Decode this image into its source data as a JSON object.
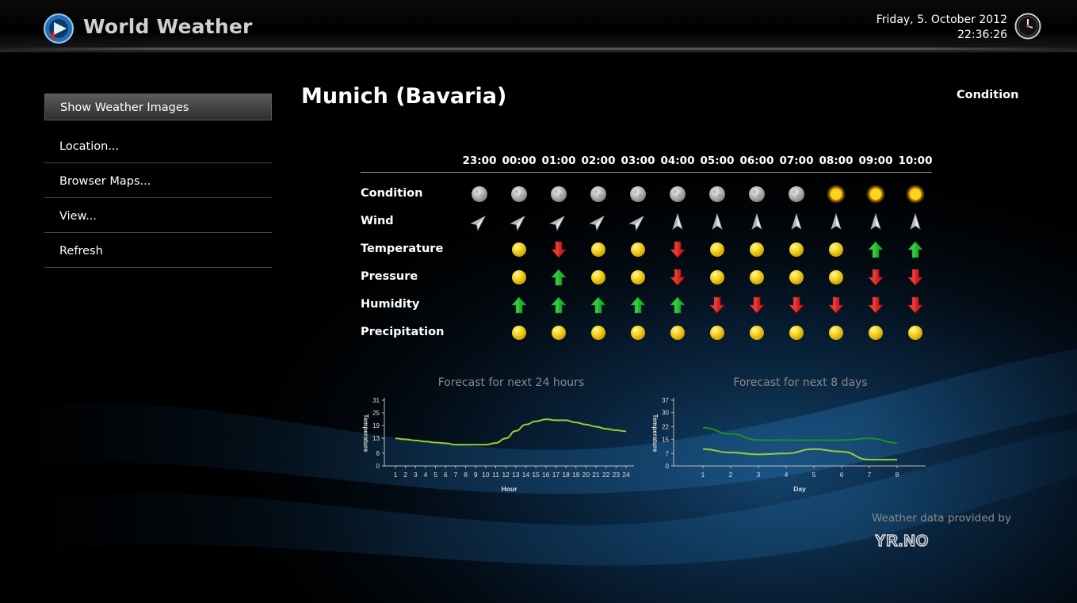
{
  "app": {
    "title": "World Weather"
  },
  "clock": {
    "date": "Friday, 5. October 2012",
    "time": "22:36:26"
  },
  "menu": [
    {
      "label": "Show Weather Images",
      "active": true
    },
    {
      "label": "Location...",
      "active": false
    },
    {
      "label": "Browser Maps...",
      "active": false
    },
    {
      "label": "View...",
      "active": false
    },
    {
      "label": "Refresh",
      "active": false
    }
  ],
  "location": {
    "city": "Munich (Bavaria)"
  },
  "condition_header": "Condition",
  "forecast_table": {
    "hours": [
      "23:00",
      "00:00",
      "01:00",
      "02:00",
      "03:00",
      "04:00",
      "05:00",
      "06:00",
      "07:00",
      "08:00",
      "09:00",
      "10:00"
    ],
    "rows": [
      {
        "label": "Condition",
        "cells": [
          "moon",
          "moon",
          "moon",
          "moon",
          "moon",
          "moon",
          "moon",
          "moon",
          "moon",
          "sun",
          "sun",
          "sun"
        ]
      },
      {
        "label": "Wind",
        "cells": [
          "ne",
          "ne",
          "ne",
          "ne",
          "ne",
          "n",
          "n",
          "n",
          "n",
          "n",
          "n",
          "n"
        ]
      },
      {
        "label": "Temperature",
        "cells": [
          "",
          "steady",
          "down",
          "steady",
          "steady",
          "down",
          "steady",
          "steady",
          "steady",
          "steady",
          "up",
          "up"
        ]
      },
      {
        "label": "Pressure",
        "cells": [
          "",
          "steady",
          "up",
          "steady",
          "steady",
          "down",
          "steady",
          "steady",
          "steady",
          "steady",
          "down",
          "down"
        ]
      },
      {
        "label": "Humidity",
        "cells": [
          "",
          "up",
          "up",
          "up",
          "up",
          "up",
          "down",
          "down",
          "down",
          "down",
          "down",
          "down"
        ]
      },
      {
        "label": "Precipitation",
        "cells": [
          "",
          "steady",
          "steady",
          "steady",
          "steady",
          "steady",
          "steady",
          "steady",
          "steady",
          "steady",
          "steady",
          "steady"
        ]
      }
    ]
  },
  "chart_data": [
    {
      "type": "line",
      "title": "Forecast for next 24 hours",
      "xlabel": "Hour",
      "ylabel": "Temperature",
      "x": [
        1,
        2,
        3,
        4,
        5,
        6,
        7,
        8,
        9,
        10,
        11,
        12,
        13,
        14,
        15,
        16,
        17,
        18,
        19,
        20,
        21,
        22,
        23,
        24
      ],
      "ylim": [
        0,
        31
      ],
      "yticks": [
        0,
        6,
        13,
        19,
        25,
        31
      ],
      "series": [
        {
          "color": "#9acd32",
          "values": [
            13,
            12.5,
            12,
            11.5,
            11,
            10.7,
            10,
            10,
            10,
            10,
            10.8,
            13,
            16.5,
            19.5,
            21,
            22,
            21.5,
            21.5,
            20.5,
            19.5,
            18.5,
            17.5,
            16.8,
            16.3
          ]
        }
      ]
    },
    {
      "type": "line",
      "title": "Forecast for next 8 days",
      "xlabel": "Day",
      "ylabel": "Temperature",
      "x": [
        1,
        2,
        3,
        4,
        5,
        6,
        7,
        8
      ],
      "ylim": [
        0,
        37
      ],
      "yticks": [
        0,
        7,
        15,
        22,
        30,
        37
      ],
      "series": [
        {
          "color": "#1f8f1f",
          "values": [
            21.5,
            18,
            14.5,
            14.5,
            14.5,
            14.5,
            15.5,
            13
          ]
        },
        {
          "color": "#9acd32",
          "values": [
            9.5,
            7.5,
            6.5,
            7,
            9.5,
            8,
            3.5,
            3.5
          ]
        }
      ]
    }
  ],
  "provider": {
    "text": "Weather data provided by",
    "logo": "YR.NO"
  },
  "colors": {
    "accent_blue": "#1a6fb5",
    "arrow_up": "#1faa2a",
    "arrow_down": "#d01f1f",
    "dot": "#f2d21a"
  }
}
